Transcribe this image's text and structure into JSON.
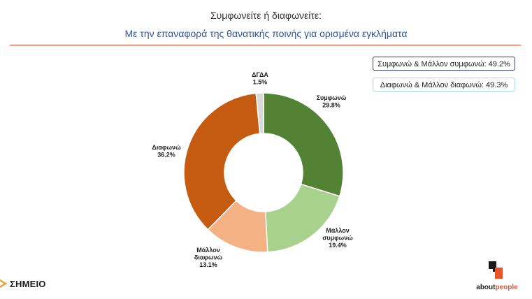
{
  "header": {
    "title": "Συμφωνείτε ή διαφωνείτε:",
    "subtitle": "Με την επαναφορά της θανατικής ποινής για ορισμένα εγκλήματα"
  },
  "summary": {
    "agree": "Συμφωνώ & Μάλλον συμφωνώ: 49.2%",
    "disagree": "Διαφωνώ & Μάλλον διαφωνώ: 49.3%"
  },
  "chart_data": {
    "type": "pie",
    "donut": true,
    "title": "",
    "slices": [
      {
        "label_lines": [
          "Συμφωνώ"
        ],
        "pct_text": "29.8%",
        "value": 29.8,
        "color": "#548235"
      },
      {
        "label_lines": [
          "Μάλλον",
          "συμφωνώ"
        ],
        "pct_text": "19.4%",
        "value": 19.4,
        "color": "#a9d18e"
      },
      {
        "label_lines": [
          "Μάλλον",
          "διαφωνώ"
        ],
        "pct_text": "13.1%",
        "value": 13.1,
        "color": "#f4b183"
      },
      {
        "label_lines": [
          "Διαφωνώ"
        ],
        "pct_text": "36.2%",
        "value": 36.2,
        "color": "#c55a11"
      },
      {
        "label_lines": [
          "ΔΓΔΑ"
        ],
        "pct_text": "1.5%",
        "value": 1.5,
        "color": "#d9d9d9"
      }
    ]
  },
  "logos": {
    "left": "ΣΗΜΕΙΟ",
    "right_main": "about",
    "right_accent": "people"
  }
}
